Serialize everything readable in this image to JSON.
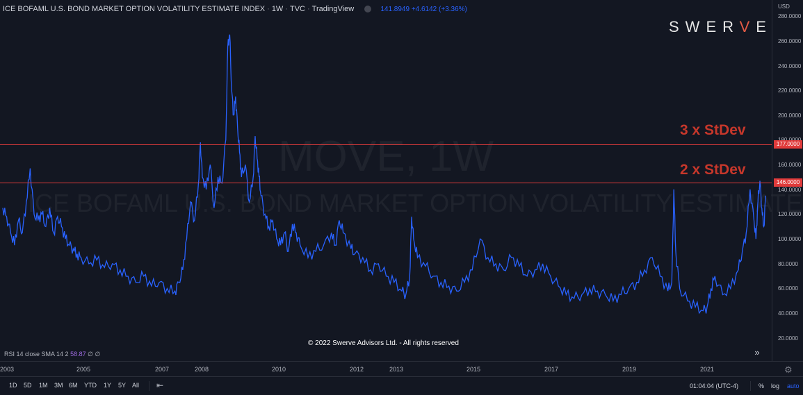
{
  "header": {
    "title": "ICE BOFAML U.S. BOND MARKET OPTION VOLATILITY ESTIMATE INDEX",
    "interval": "1W",
    "exchange": "TVC",
    "platform": "TradingView",
    "quote": "141.8949 +4.6142 (+3.36%)"
  },
  "logo": {
    "left": "SWER",
    "accent": "V",
    "right": "E"
  },
  "watermark": {
    "symbol": "MOVE, 1W",
    "description": "ICE BOFAML U.S. BOND MARKET OPTION VOLATILITY ESTIMATE INDEX"
  },
  "annotations": [
    {
      "label": "3 x StDev",
      "price_tag": "177.0000",
      "value": 177
    },
    {
      "label": "2 x StDev",
      "price_tag": "146.0000",
      "value": 146
    }
  ],
  "price_axis": {
    "currency": "USD",
    "ticks": [
      "280.0000",
      "260.0000",
      "240.0000",
      "220.0000",
      "200.0000",
      "180.0000",
      "160.0000",
      "140.0000",
      "120.0000",
      "100.0000",
      "80.0000",
      "60.0000",
      "40.0000",
      "20.0000"
    ]
  },
  "copyright": "© 2022 Swerve Advisors Ltd. - All rights reserved",
  "rsi": {
    "label": "RSI 14 close SMA 14 2",
    "value": "58.87",
    "extra": "∅ ∅"
  },
  "time_axis": {
    "years": [
      "2003",
      "2005",
      "2007",
      "2008",
      "2010",
      "2012",
      "2013",
      "2015",
      "2017",
      "2019",
      "2021"
    ]
  },
  "bottom_bar": {
    "ranges": [
      "1D",
      "5D",
      "1M",
      "3M",
      "6M",
      "YTD",
      "1Y",
      "5Y",
      "All"
    ],
    "clock": "01:04:04 (UTC-4)",
    "percent": "%",
    "log": "log",
    "auto": "auto"
  },
  "colors": {
    "background": "#131722",
    "line": "#2962ff",
    "stdev_line": "#e03b3b",
    "annotation": "#c7372b"
  },
  "icons": {
    "calendar": "calendar-range-icon",
    "settings": "gear-icon",
    "scroll": "scroll-right-icon"
  },
  "chart_data": {
    "type": "line",
    "title": "ICE BOFAML U.S. BOND MARKET OPTION VOLATILITY ESTIMATE INDEX",
    "ylim": [
      10,
      285
    ],
    "xlim": [
      2003.0,
      2022.5
    ],
    "series": [
      {
        "name": "MOVE",
        "points": [
          [
            2003.0,
            125
          ],
          [
            2003.1,
            118
          ],
          [
            2003.2,
            105
          ],
          [
            2003.3,
            95
          ],
          [
            2003.4,
            115
          ],
          [
            2003.5,
            105
          ],
          [
            2003.6,
            130
          ],
          [
            2003.7,
            157
          ],
          [
            2003.8,
            120
          ],
          [
            2003.9,
            115
          ],
          [
            2004.0,
            120
          ],
          [
            2004.1,
            110
          ],
          [
            2004.2,
            125
          ],
          [
            2004.3,
            105
          ],
          [
            2004.4,
            118
          ],
          [
            2004.5,
            110
          ],
          [
            2004.6,
            100
          ],
          [
            2004.7,
            95
          ],
          [
            2004.8,
            92
          ],
          [
            2004.9,
            88
          ],
          [
            2005.0,
            85
          ],
          [
            2005.2,
            80
          ],
          [
            2005.4,
            83
          ],
          [
            2005.6,
            77
          ],
          [
            2005.8,
            80
          ],
          [
            2006.0,
            75
          ],
          [
            2006.2,
            70
          ],
          [
            2006.4,
            65
          ],
          [
            2006.6,
            70
          ],
          [
            2006.8,
            62
          ],
          [
            2007.0,
            65
          ],
          [
            2007.2,
            60
          ],
          [
            2007.4,
            58
          ],
          [
            2007.5,
            65
          ],
          [
            2007.6,
            75
          ],
          [
            2007.7,
            100
          ],
          [
            2007.8,
            130
          ],
          [
            2007.9,
            115
          ],
          [
            2008.0,
            145
          ],
          [
            2008.05,
            178
          ],
          [
            2008.1,
            150
          ],
          [
            2008.2,
            140
          ],
          [
            2008.3,
            160
          ],
          [
            2008.4,
            125
          ],
          [
            2008.5,
            150
          ],
          [
            2008.6,
            145
          ],
          [
            2008.7,
            180
          ],
          [
            2008.75,
            255
          ],
          [
            2008.8,
            265
          ],
          [
            2008.85,
            220
          ],
          [
            2008.9,
            200
          ],
          [
            2008.95,
            215
          ],
          [
            2009.0,
            190
          ],
          [
            2009.05,
            170
          ],
          [
            2009.1,
            150
          ],
          [
            2009.2,
            160
          ],
          [
            2009.3,
            130
          ],
          [
            2009.4,
            150
          ],
          [
            2009.45,
            183
          ],
          [
            2009.5,
            165
          ],
          [
            2009.55,
            150
          ],
          [
            2009.6,
            135
          ],
          [
            2009.7,
            120
          ],
          [
            2009.8,
            110
          ],
          [
            2009.9,
            115
          ],
          [
            2010.0,
            100
          ],
          [
            2010.1,
            95
          ],
          [
            2010.2,
            105
          ],
          [
            2010.3,
            90
          ],
          [
            2010.4,
            112
          ],
          [
            2010.5,
            105
          ],
          [
            2010.6,
            95
          ],
          [
            2010.8,
            85
          ],
          [
            2011.0,
            90
          ],
          [
            2011.2,
            95
          ],
          [
            2011.4,
            105
          ],
          [
            2011.5,
            95
          ],
          [
            2011.6,
            115
          ],
          [
            2011.7,
            105
          ],
          [
            2011.9,
            92
          ],
          [
            2012.0,
            88
          ],
          [
            2012.2,
            85
          ],
          [
            2012.4,
            75
          ],
          [
            2012.6,
            80
          ],
          [
            2012.8,
            70
          ],
          [
            2013.0,
            65
          ],
          [
            2013.2,
            58
          ],
          [
            2013.3,
            55
          ],
          [
            2013.4,
            70
          ],
          [
            2013.45,
            118
          ],
          [
            2013.5,
            100
          ],
          [
            2013.6,
            85
          ],
          [
            2013.8,
            78
          ],
          [
            2014.0,
            70
          ],
          [
            2014.2,
            65
          ],
          [
            2014.4,
            62
          ],
          [
            2014.6,
            58
          ],
          [
            2014.8,
            65
          ],
          [
            2015.0,
            75
          ],
          [
            2015.2,
            100
          ],
          [
            2015.4,
            85
          ],
          [
            2015.6,
            80
          ],
          [
            2015.8,
            75
          ],
          [
            2016.0,
            85
          ],
          [
            2016.2,
            78
          ],
          [
            2016.4,
            70
          ],
          [
            2016.6,
            75
          ],
          [
            2016.8,
            80
          ],
          [
            2017.0,
            70
          ],
          [
            2017.2,
            62
          ],
          [
            2017.4,
            55
          ],
          [
            2017.6,
            52
          ],
          [
            2017.8,
            55
          ],
          [
            2018.0,
            60
          ],
          [
            2018.2,
            58
          ],
          [
            2018.4,
            55
          ],
          [
            2018.6,
            50
          ],
          [
            2018.8,
            55
          ],
          [
            2019.0,
            60
          ],
          [
            2019.2,
            65
          ],
          [
            2019.4,
            75
          ],
          [
            2019.6,
            85
          ],
          [
            2019.8,
            70
          ],
          [
            2020.0,
            58
          ],
          [
            2020.1,
            65
          ],
          [
            2020.15,
            140
          ],
          [
            2020.2,
            90
          ],
          [
            2020.3,
            60
          ],
          [
            2020.5,
            50
          ],
          [
            2020.7,
            45
          ],
          [
            2020.9,
            42
          ],
          [
            2021.0,
            45
          ],
          [
            2021.1,
            60
          ],
          [
            2021.2,
            70
          ],
          [
            2021.4,
            55
          ],
          [
            2021.6,
            60
          ],
          [
            2021.8,
            75
          ],
          [
            2021.9,
            90
          ],
          [
            2022.0,
            105
          ],
          [
            2022.1,
            140
          ],
          [
            2022.2,
            115
          ],
          [
            2022.25,
            100
          ],
          [
            2022.3,
            130
          ],
          [
            2022.35,
            147
          ],
          [
            2022.4,
            125
          ],
          [
            2022.45,
            110
          ],
          [
            2022.5,
            135
          ]
        ]
      }
    ]
  }
}
